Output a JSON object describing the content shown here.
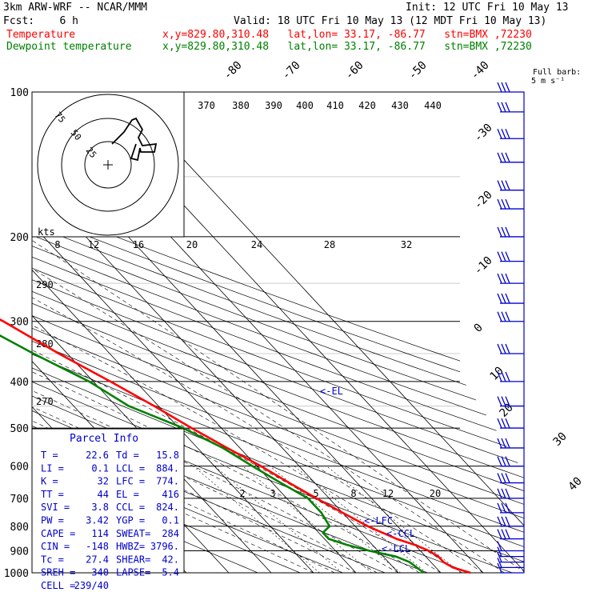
{
  "header": {
    "model": "3km ARW-WRF -- NCAR/MMM",
    "init": "Init: 12 UTC Fri 10 May 13",
    "fcst": "Fcst:    6 h",
    "valid": "Valid: 18 UTC Fri 10 May 13 (12 MDT Fri 10 May 13)",
    "temp_label": "Temperature",
    "temp_loc": "x,y=829.80,310.48   lat,lon= 33.17, -86.77   stn=BMX ,72230",
    "dew_label": "Dewpoint temperature",
    "dew_loc": "x,y=829.80,310.48   lat,lon= 33.17, -86.77   stn=BMX ,72230",
    "barb_label_1": "Full barb:",
    "barb_label_2": "5 m s⁻¹"
  },
  "colors": {
    "temperature": "#ff0000",
    "dewpoint": "#008000",
    "axes": "#000000",
    "info": "#0000cd"
  },
  "hodograph": {
    "unit": "kts",
    "rings": [
      "75",
      "50",
      "25"
    ]
  },
  "parcel_info": {
    "title": "Parcel Info",
    "rows": [
      [
        "T   =",
        "22.6",
        "Td  =",
        "15.8"
      ],
      [
        "LI  =",
        "0.1",
        "LCL =",
        "884."
      ],
      [
        "K   =",
        "32",
        "LFC =",
        "774."
      ],
      [
        "TT  =",
        "44",
        "EL  =",
        "416"
      ],
      [
        "SVI =",
        "3.8",
        "CCL =",
        "824."
      ],
      [
        "PW  =",
        "3.42",
        "YGP =",
        "0.1"
      ],
      [
        "CAPE =",
        "114",
        "SWEAT=",
        "284"
      ],
      [
        "CIN  =",
        "-148",
        "HWBZ=",
        "3796."
      ],
      [
        "Tc   =",
        "27.4",
        "SHEAR=",
        "42."
      ],
      [
        "SREH =",
        "340",
        "LAPSE=",
        "5.4"
      ],
      [
        "CELL =",
        "239/40",
        "",
        ""
      ]
    ]
  },
  "level_markers": [
    "<-EL",
    "<-LFC",
    "<-CCL",
    "<-LCL"
  ],
  "chart_data": {
    "type": "skew-t",
    "y_axis": {
      "scale": "log",
      "unit": "hPa",
      "ticks": [
        100,
        200,
        300,
        400,
        500,
        600,
        700,
        800,
        900,
        1000
      ]
    },
    "isotherm_labels": [
      "-80",
      "-70",
      "-60",
      "-50",
      "-40",
      "-30",
      "-20",
      "-10",
      "0",
      "10",
      "20",
      "30",
      "40"
    ],
    "theta_labels_top": [
      "370",
      "380",
      "390",
      "400",
      "410",
      "420",
      "430",
      "440"
    ],
    "theta_labels_mid": [
      "8",
      "12",
      "16",
      "20",
      "24",
      "28",
      "32"
    ],
    "theta_labels_left": [
      "290",
      "280",
      "270"
    ],
    "mixing_ratio_labels": [
      "2",
      "3",
      "5",
      "8",
      "12",
      "20"
    ],
    "temperature": [
      [
        1000,
        27
      ],
      [
        975,
        24
      ],
      [
        950,
        23
      ],
      [
        925,
        23
      ],
      [
        900,
        22
      ],
      [
        875,
        20
      ],
      [
        850,
        17
      ],
      [
        800,
        13
      ],
      [
        750,
        10
      ],
      [
        700,
        7
      ],
      [
        650,
        4
      ],
      [
        600,
        1
      ],
      [
        550,
        -3
      ],
      [
        500,
        -7
      ],
      [
        450,
        -11
      ],
      [
        400,
        -16
      ],
      [
        350,
        -22
      ],
      [
        300,
        -28
      ],
      [
        250,
        -37
      ],
      [
        200,
        -48
      ],
      [
        170,
        -55
      ],
      [
        150,
        -55
      ],
      [
        125,
        -47
      ],
      [
        110,
        -47
      ],
      [
        100,
        -45
      ]
    ],
    "dewpoint": [
      [
        1000,
        16
      ],
      [
        975,
        15.5
      ],
      [
        950,
        15
      ],
      [
        925,
        13
      ],
      [
        900,
        8
      ],
      [
        875,
        4
      ],
      [
        850,
        1
      ],
      [
        825,
        1
      ],
      [
        800,
        4
      ],
      [
        750,
        5
      ],
      [
        700,
        5
      ],
      [
        650,
        2
      ],
      [
        600,
        -1
      ],
      [
        550,
        -4
      ],
      [
        500,
        -9
      ],
      [
        450,
        -17
      ],
      [
        400,
        -21
      ],
      [
        350,
        -28
      ],
      [
        300,
        -35
      ],
      [
        250,
        -46
      ],
      [
        200,
        -57
      ],
      [
        150,
        -71
      ],
      [
        120,
        -82
      ],
      [
        110,
        -85
      ],
      [
        100,
        -81
      ]
    ],
    "wind_barb_levels": [
      100,
      110,
      125,
      140,
      160,
      175,
      200,
      225,
      250,
      275,
      300,
      350,
      400,
      450,
      500,
      550,
      600,
      650,
      700,
      750,
      800,
      850,
      900,
      925,
      950,
      975,
      1000
    ]
  }
}
